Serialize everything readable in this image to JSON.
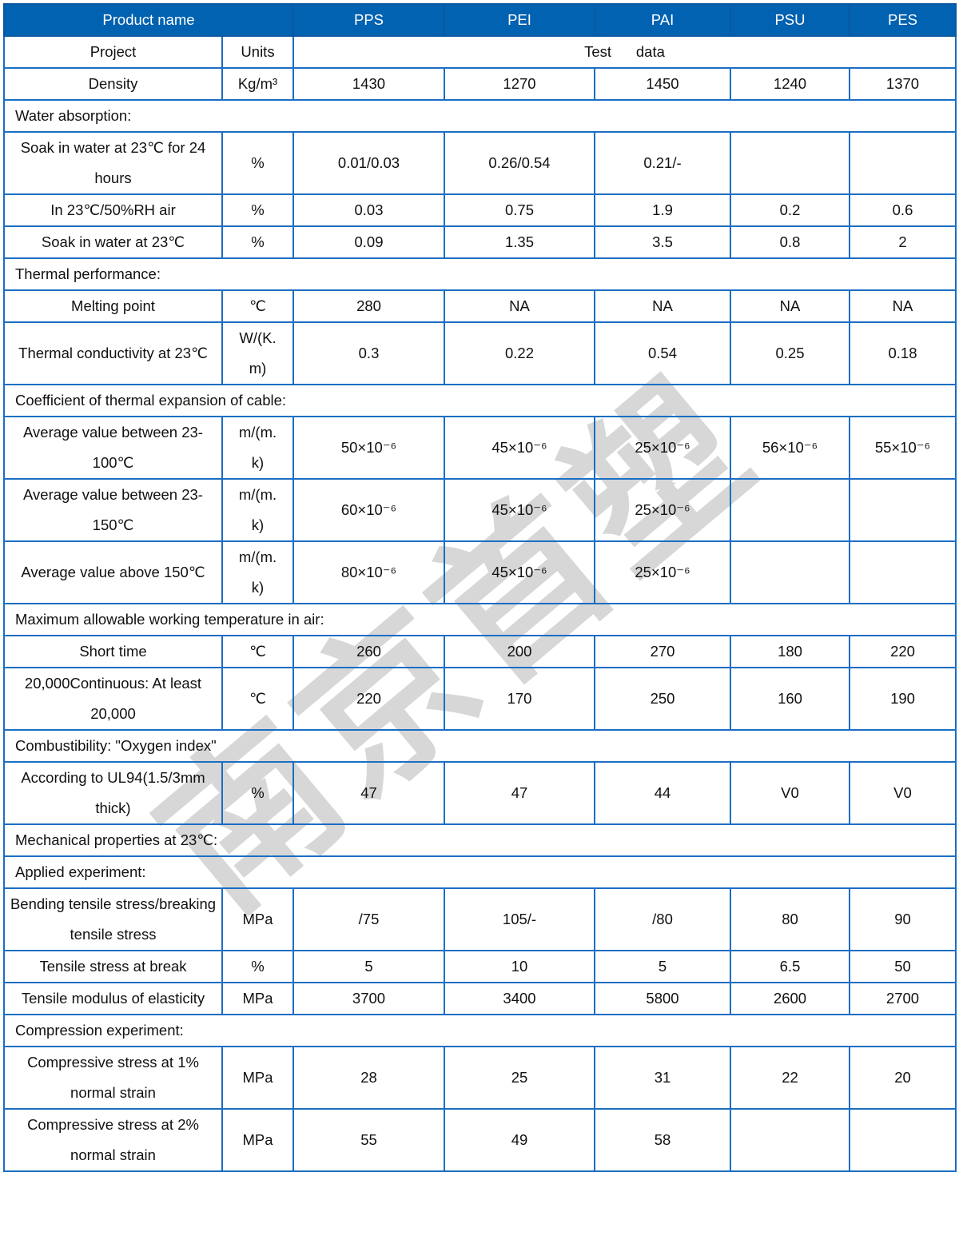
{
  "header": {
    "product_label": "Product name",
    "products": [
      "PPS",
      "PEI",
      "PAI",
      "PSU",
      "PES"
    ]
  },
  "subheader": {
    "project": "Project",
    "units": "Units",
    "test_data": "Test      data"
  },
  "rows": [
    {
      "type": "data",
      "label": "Density",
      "unit": "Kg/m³",
      "values": [
        "1430",
        "1270",
        "1450",
        "1240",
        "1370"
      ]
    },
    {
      "type": "section",
      "label": "Water absorption:"
    },
    {
      "type": "data",
      "label": "Soak in water at 23℃ for 24 hours",
      "unit": "%",
      "values": [
        "0.01/0.03",
        "0.26/0.54",
        "0.21/-",
        "",
        ""
      ]
    },
    {
      "type": "data",
      "label": "In 23℃/50%RH air",
      "unit": "%",
      "values": [
        "0.03",
        "0.75",
        "1.9",
        "0.2",
        "0.6"
      ]
    },
    {
      "type": "data",
      "label": "Soak in water at 23℃",
      "unit": "%",
      "values": [
        "0.09",
        "1.35",
        "3.5",
        "0.8",
        "2"
      ]
    },
    {
      "type": "section",
      "label": "Thermal performance:"
    },
    {
      "type": "data",
      "label": "Melting point",
      "unit": "℃",
      "values": [
        "280",
        "NA",
        "NA",
        "NA",
        "NA"
      ]
    },
    {
      "type": "data",
      "label": "Thermal conductivity at 23℃",
      "unit": "W/(K.\nm)",
      "values": [
        "0.3",
        "0.22",
        "0.54",
        "0.25",
        "0.18"
      ]
    },
    {
      "type": "section",
      "label": "Coefficient of thermal expansion of cable:"
    },
    {
      "type": "data",
      "label": "Average value between 23-100℃",
      "unit": "m/(m.\nk)",
      "values": [
        "50×10⁻⁶",
        "45×10⁻⁶",
        "25×10⁻⁶",
        "56×10⁻⁶",
        "55×10⁻⁶"
      ]
    },
    {
      "type": "data",
      "label": "Average value between 23-150℃",
      "unit": "m/(m.\nk)",
      "values": [
        "60×10⁻⁶",
        "45×10⁻⁶",
        "25×10⁻⁶",
        "",
        ""
      ]
    },
    {
      "type": "data",
      "label": "Average value above 150℃",
      "unit": "m/(m.\nk)",
      "values": [
        "80×10⁻⁶",
        "45×10⁻⁶",
        "25×10⁻⁶",
        "",
        ""
      ]
    },
    {
      "type": "section",
      "label": "Maximum allowable working temperature in air:"
    },
    {
      "type": "data",
      "label": "Short time",
      "unit": "℃",
      "values": [
        "260",
        "200",
        "270",
        "180",
        "220"
      ]
    },
    {
      "type": "data",
      "label": "20,000Continuous: At least 20,000",
      "unit": "℃",
      "values": [
        "220",
        "170",
        "250",
        "160",
        "190"
      ]
    },
    {
      "type": "section",
      "label": "Combustibility: \"Oxygen index\""
    },
    {
      "type": "data",
      "label": "According to UL94(1.5/3mm thick)",
      "unit": "%",
      "values": [
        "47",
        "47",
        "44",
        "V0",
        "V0"
      ]
    },
    {
      "type": "section",
      "label": "Mechanical properties at 23℃:"
    },
    {
      "type": "section",
      "label": "Applied experiment:"
    },
    {
      "type": "data",
      "label": "Bending tensile stress/breaking tensile stress",
      "unit": "MPa",
      "values": [
        "/75",
        "105/-",
        "/80",
        "80",
        "90"
      ]
    },
    {
      "type": "data",
      "label": "Tensile stress at break",
      "unit": "%",
      "values": [
        "5",
        "10",
        "5",
        "6.5",
        "50"
      ]
    },
    {
      "type": "data",
      "label": "Tensile modulus of elasticity",
      "unit": "MPa",
      "values": [
        "3700",
        "3400",
        "5800",
        "2600",
        "2700"
      ]
    },
    {
      "type": "section",
      "label": "Compression experiment:"
    },
    {
      "type": "data",
      "label": "Compressive stress at 1% normal strain",
      "unit": "MPa",
      "values": [
        "28",
        "25",
        "31",
        "22",
        "20"
      ]
    },
    {
      "type": "data",
      "label": "Compressive stress at 2% normal strain",
      "unit": "MPa",
      "values": [
        "55",
        "49",
        "58",
        "",
        ""
      ]
    }
  ],
  "watermark": "南京首塑",
  "colors": {
    "header_bg": "#0062b1",
    "border": "#1b6ec2"
  }
}
